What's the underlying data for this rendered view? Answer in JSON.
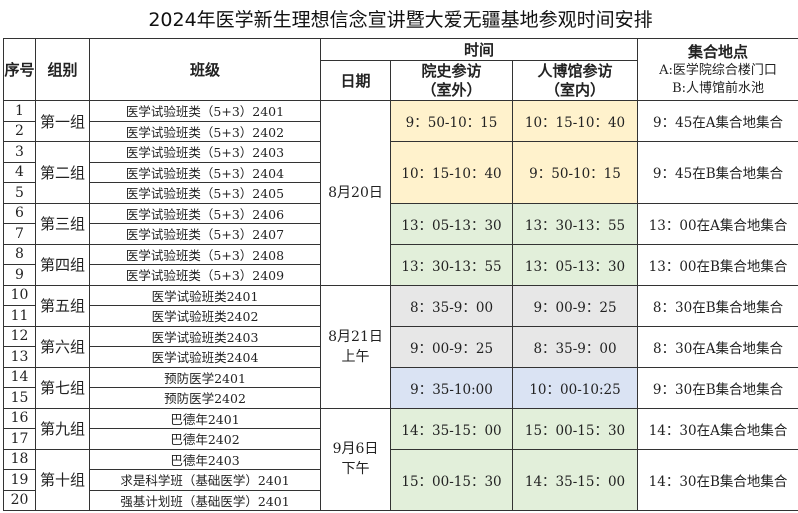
{
  "title": "2024年医学新生理想信念宣讲暨大爱无疆基地参观时间安排",
  "headers": {
    "no": "序号",
    "group": "组别",
    "class": "班级",
    "time": "时间",
    "date": "日期",
    "time1_line1": "院史参访",
    "time1_line2": "（室外）",
    "time2_line1": "人博馆参访",
    "time2_line2": "（室内）",
    "meet_title": "集合地点",
    "meet_a": "A:医学院综合楼门口",
    "meet_b": "B:人博馆前水池"
  },
  "colors": {
    "yellow": "#fff2cc",
    "green": "#e2efda",
    "grey": "#e7e7e7",
    "blue": "#dae3f3"
  },
  "rows": [
    {
      "no": "1",
      "class": "医学试验班类（5+3）2401"
    },
    {
      "no": "2",
      "class": "医学试验班类（5+3）2402"
    },
    {
      "no": "3",
      "class": "医学试验班类（5+3）2403"
    },
    {
      "no": "4",
      "class": "医学试验班类（5+3）2404"
    },
    {
      "no": "5",
      "class": "医学试验班类（5+3）2405"
    },
    {
      "no": "6",
      "class": "医学试验班类（5+3）2406"
    },
    {
      "no": "7",
      "class": "医学试验班类（5+3）2407"
    },
    {
      "no": "8",
      "class": "医学试验班类（5+3）2408"
    },
    {
      "no": "9",
      "class": "医学试验班类（5+3）2409"
    },
    {
      "no": "10",
      "class": "医学试验班类2401"
    },
    {
      "no": "11",
      "class": "医学试验班类2402"
    },
    {
      "no": "12",
      "class": "医学试验班类2403"
    },
    {
      "no": "13",
      "class": "医学试验班类2404"
    },
    {
      "no": "14",
      "class": "预防医学2401"
    },
    {
      "no": "15",
      "class": "预防医学2402"
    },
    {
      "no": "16",
      "class": "巴德年2401"
    },
    {
      "no": "17",
      "class": "巴德年2402"
    },
    {
      "no": "18",
      "class": "巴德年2403"
    },
    {
      "no": "19",
      "class": "求是科学班（基础医学）2401"
    },
    {
      "no": "20",
      "class": "强基计划班（基础医学）2401"
    }
  ],
  "groups": [
    {
      "name": "第一组",
      "span": 2,
      "time1": "9：50-10：15",
      "time2": "10：15-10：40",
      "meet": "9：45在A集合地集合",
      "color": "yellow"
    },
    {
      "name": "第二组",
      "span": 3,
      "time1": "10：15-10：40",
      "time2": "9：50-10：15",
      "meet": "9：45在B集合地集合",
      "color": "yellow"
    },
    {
      "name": "第三组",
      "span": 2,
      "time1": "13：05-13：30",
      "time2": "13：30-13：55",
      "meet": "13：00在A集合地集合",
      "color": "green"
    },
    {
      "name": "第四组",
      "span": 2,
      "time1": "13：30-13：55",
      "time2": "13：05-13：30",
      "meet": "13：00在B集合地集合",
      "color": "green"
    },
    {
      "name": "第五组",
      "span": 2,
      "time1": "8：35-9：00",
      "time2": "9：00-9：25",
      "meet": "8：30在B集合地集合",
      "color": "grey"
    },
    {
      "name": "第六组",
      "span": 2,
      "time1": "9：00-9：25",
      "time2": "8：35-9：00",
      "meet": "8：30在A集合地集合",
      "color": "grey"
    },
    {
      "name": "第七组",
      "span": 2,
      "time1": "9：35-10:00",
      "time2": "10：00-10:25",
      "meet": "9：30在B集合地集合",
      "color": "blue"
    },
    {
      "name": "第九组",
      "span": 2,
      "time1": "14：35-15：00",
      "time2": "15：00-15：30",
      "meet": "14：30在A集合地集合",
      "color": "green"
    },
    {
      "name": "第十组",
      "span": 3,
      "time1": "15：00-15：30",
      "time2": "14：35-15：00",
      "meet": "14：30在B集合地集合",
      "color": "green"
    }
  ],
  "dates": [
    {
      "line1": "8月20日",
      "line2": "",
      "span": 9
    },
    {
      "line1": "8月21日",
      "line2": "上午",
      "span": 6
    },
    {
      "line1": "9月6日",
      "line2": "下午",
      "span": 5
    }
  ]
}
